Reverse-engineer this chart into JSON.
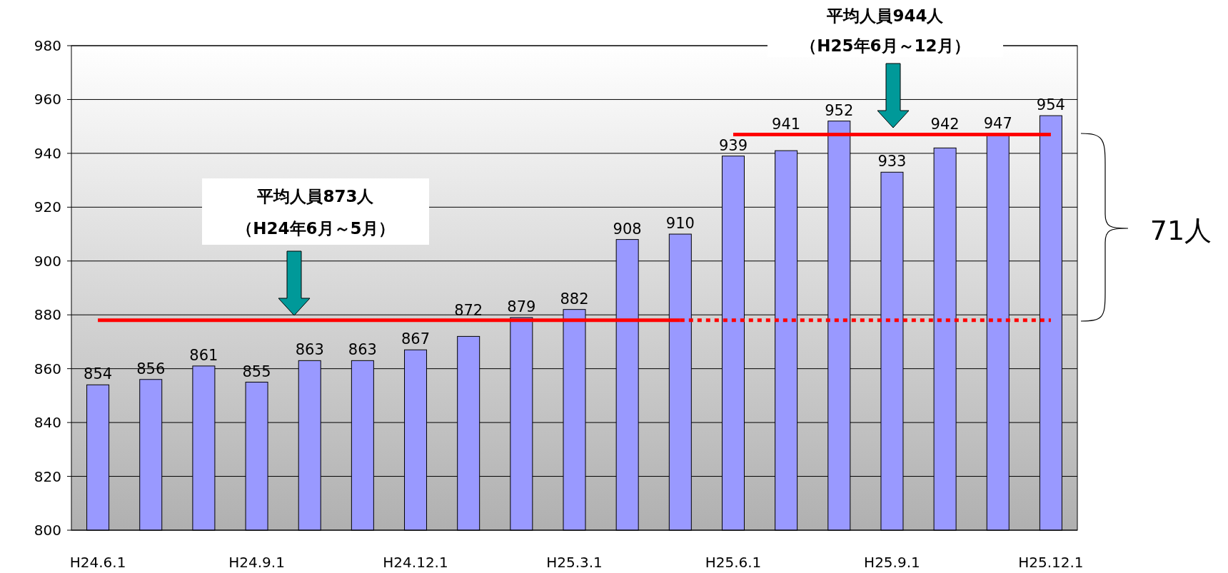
{
  "chart_data": {
    "type": "bar",
    "categories": [
      "H24.6.1",
      null,
      null,
      "H24.9.1",
      null,
      null,
      "H24.12.1",
      null,
      null,
      "H25.3.1",
      null,
      null,
      "H25.6.1",
      null,
      null,
      "H25.9.1",
      null,
      null,
      "H25.12.1"
    ],
    "series": [
      {
        "color": "#9999ff",
        "values": [
          854,
          856,
          861,
          855,
          863,
          863,
          867,
          872,
          879,
          882,
          908,
          910,
          939,
          941,
          952,
          933,
          942,
          947,
          954
        ],
        "value_labels": [
          "854",
          "856",
          "861",
          "855",
          "863",
          "863",
          "867",
          "872",
          "879",
          "882",
          "908",
          "910",
          "939",
          "941",
          "952",
          "933",
          "942",
          "947",
          "954"
        ]
      },
      {
        "type": "line",
        "color": "#ff0000",
        "line_style": "solid",
        "values": [
          878,
          878,
          878,
          878,
          878,
          878,
          878,
          878,
          878,
          878,
          878,
          878,
          null,
          null,
          null,
          null,
          null,
          null,
          null
        ]
      },
      {
        "type": "line",
        "color": "#ff0000",
        "line_style": "dotted",
        "values": [
          null,
          null,
          null,
          null,
          null,
          null,
          null,
          null,
          null,
          null,
          null,
          878,
          878,
          878,
          878,
          878,
          878,
          878,
          878
        ]
      },
      {
        "type": "line",
        "color": "#ff0000",
        "line_style": "solid",
        "values": [
          null,
          null,
          null,
          null,
          null,
          null,
          null,
          null,
          null,
          null,
          null,
          null,
          947,
          947,
          947,
          947,
          947,
          947,
          947
        ]
      }
    ],
    "ylim": [
      800,
      980
    ],
    "yticks": [
      800,
      820,
      840,
      860,
      880,
      900,
      920,
      940,
      960,
      980
    ],
    "grid": "y",
    "annotations": [
      "平均人員873人",
      "（H24年6月～5月）",
      "平均人員944人",
      "（H25年6月～12月）",
      "71人"
    ]
  }
}
